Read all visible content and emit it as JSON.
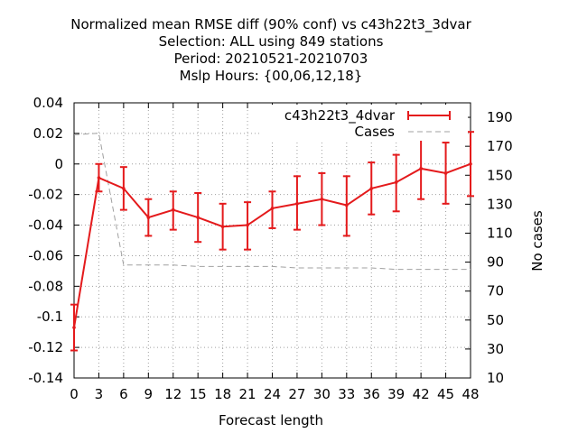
{
  "chart_data": {
    "type": "line",
    "title_lines": [
      "Normalized mean RMSE diff (90% conf) vs c43h22t3_3dvar",
      "Selection: ALL using   849 stations",
      "Period: 20210521-20210703",
      "Mslp   Hours: {00,06,12,18}"
    ],
    "xlabel": "Forecast length",
    "ylabel": "",
    "y2label": "No cases",
    "x": [
      0,
      3,
      6,
      9,
      12,
      15,
      18,
      21,
      24,
      27,
      30,
      33,
      36,
      39,
      42,
      45,
      48
    ],
    "x_ticks": [
      "0",
      "3",
      "6",
      "9",
      "12",
      "15",
      "18",
      "21",
      "24",
      "27",
      "30",
      "33",
      "36",
      "39",
      "42",
      "45",
      "48"
    ],
    "y_ticks": [
      "0.04",
      "0.02",
      "0",
      "-0.02",
      "-0.04",
      "-0.06",
      "-0.08",
      "-0.1",
      "-0.12",
      "-0.14"
    ],
    "y2_ticks": [
      "190",
      "170",
      "150",
      "130",
      "110",
      "90",
      "70",
      "50",
      "30",
      "10"
    ],
    "xlim": [
      0,
      48
    ],
    "ylim": [
      -0.14,
      0.04
    ],
    "y2lim": [
      10,
      200
    ],
    "grid": true,
    "legend_position": "top-right",
    "series": [
      {
        "name": "c43h22t3_4dvar",
        "color": "#e41a1c",
        "axis": "y",
        "values": [
          -0.107,
          -0.009,
          -0.016,
          -0.035,
          -0.03,
          -0.035,
          -0.041,
          -0.04,
          -0.029,
          -0.026,
          -0.023,
          -0.027,
          -0.016,
          -0.012,
          -0.003,
          -0.006,
          0.0
        ],
        "err_low": [
          -0.122,
          -0.018,
          -0.03,
          -0.047,
          -0.043,
          -0.051,
          -0.056,
          -0.056,
          -0.042,
          -0.043,
          -0.04,
          -0.047,
          -0.033,
          -0.031,
          -0.023,
          -0.026,
          -0.021
        ],
        "err_high": [
          -0.092,
          0.0,
          -0.002,
          -0.023,
          -0.018,
          -0.019,
          -0.026,
          -0.025,
          -0.018,
          -0.008,
          -0.006,
          -0.008,
          0.001,
          0.006,
          0.016,
          0.014,
          0.021
        ]
      },
      {
        "name": "Cases",
        "color": "#a0a0a0",
        "axis": "y2",
        "values": [
          178,
          179,
          88,
          88,
          88,
          87,
          87,
          87,
          87,
          86,
          86,
          86,
          86,
          85,
          85,
          85,
          85
        ]
      }
    ]
  }
}
